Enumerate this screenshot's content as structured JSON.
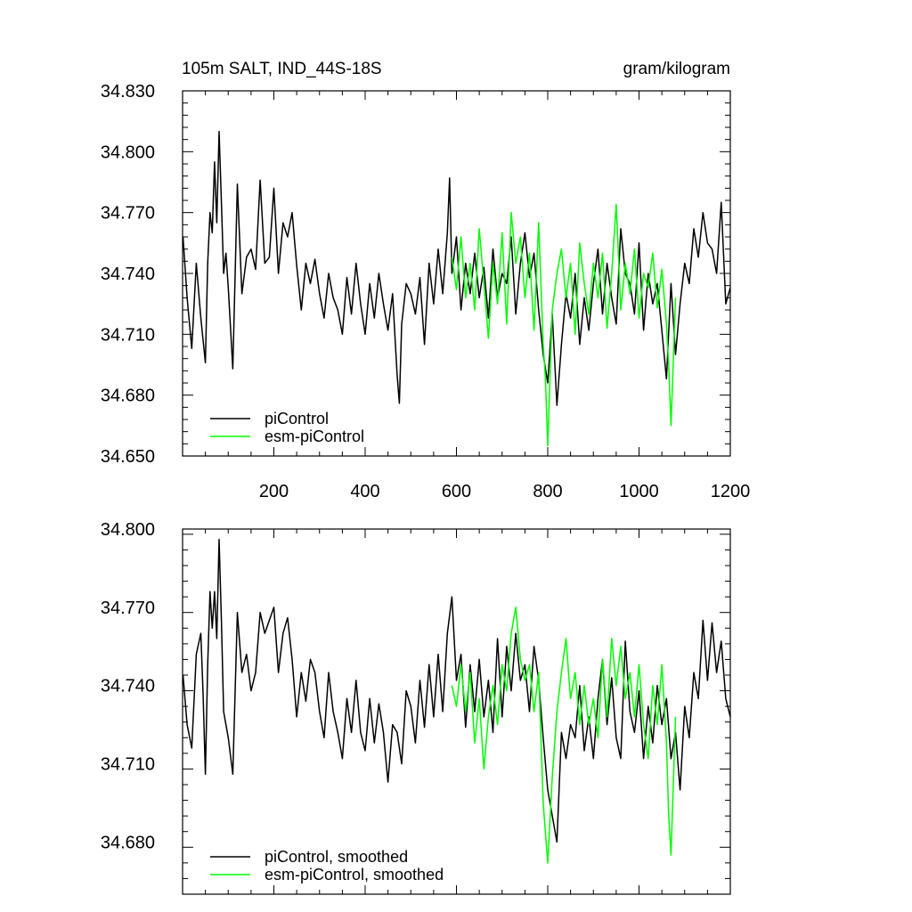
{
  "chart_data": [
    {
      "type": "line",
      "title_left": "105m SALT, IND_44S-18S",
      "title_right": "gram/kilogram",
      "xlim": [
        0,
        1200
      ],
      "ylim": [
        34.65,
        34.83
      ],
      "x_ticks": [
        200,
        400,
        600,
        800,
        1000,
        1200
      ],
      "x_tick_labels": [
        "200",
        "400",
        "600",
        "800",
        "1000",
        "1200"
      ],
      "y_ticks": [
        34.65,
        34.68,
        34.71,
        34.74,
        34.77,
        34.8,
        34.83
      ],
      "y_tick_labels": [
        "34.650",
        "34.680",
        "34.710",
        "34.740",
        "34.770",
        "34.800",
        "34.830"
      ],
      "legend_position": "bottom-left",
      "series": [
        {
          "name": "piControl",
          "color": "#000000",
          "x": [
            1,
            10,
            20,
            30,
            40,
            50,
            55,
            60,
            65,
            70,
            75,
            80,
            85,
            90,
            95,
            100,
            110,
            120,
            130,
            140,
            150,
            160,
            170,
            180,
            190,
            200,
            210,
            220,
            230,
            240,
            250,
            260,
            270,
            280,
            290,
            300,
            310,
            320,
            330,
            340,
            350,
            360,
            370,
            380,
            390,
            400,
            410,
            420,
            430,
            440,
            450,
            460,
            470,
            475,
            480,
            490,
            500,
            510,
            520,
            530,
            540,
            550,
            560,
            570,
            580,
            585,
            590,
            600,
            610,
            620,
            630,
            640,
            650,
            660,
            670,
            680,
            690,
            700,
            710,
            720,
            730,
            740,
            750,
            760,
            770,
            780,
            790,
            800,
            810,
            820,
            830,
            840,
            850,
            860,
            870,
            880,
            890,
            900,
            910,
            920,
            930,
            940,
            950,
            960,
            970,
            980,
            990,
            1000,
            1010,
            1020,
            1030,
            1040,
            1050,
            1060,
            1070,
            1080,
            1090,
            1100,
            1110,
            1120,
            1130,
            1140,
            1150,
            1160,
            1170,
            1180,
            1190,
            1200
          ],
          "values": [
            34.758,
            34.728,
            34.703,
            34.745,
            34.718,
            34.696,
            34.745,
            34.77,
            34.76,
            34.795,
            34.765,
            34.81,
            34.775,
            34.74,
            34.75,
            34.733,
            34.693,
            34.784,
            34.73,
            34.748,
            34.752,
            34.742,
            34.786,
            34.745,
            34.748,
            34.782,
            34.74,
            34.765,
            34.758,
            34.77,
            34.744,
            34.722,
            34.745,
            34.735,
            34.747,
            34.73,
            34.718,
            34.74,
            34.728,
            34.722,
            34.71,
            34.738,
            34.72,
            34.745,
            34.725,
            34.71,
            34.735,
            34.718,
            34.74,
            34.725,
            34.712,
            34.73,
            34.69,
            34.676,
            34.715,
            34.735,
            34.73,
            34.72,
            34.738,
            34.705,
            34.745,
            34.725,
            34.752,
            34.73,
            34.76,
            34.787,
            34.74,
            34.758,
            34.722,
            34.745,
            34.73,
            34.75,
            34.728,
            34.743,
            34.718,
            34.752,
            34.728,
            34.74,
            34.735,
            34.758,
            34.72,
            34.745,
            34.76,
            34.738,
            34.75,
            34.722,
            34.7,
            34.686,
            34.72,
            34.675,
            34.705,
            34.73,
            34.718,
            34.74,
            34.705,
            34.728,
            34.712,
            34.735,
            34.752,
            34.72,
            34.745,
            34.728,
            34.715,
            34.762,
            34.74,
            34.735,
            34.72,
            34.755,
            34.712,
            34.74,
            34.725,
            34.735,
            34.712,
            34.688,
            34.735,
            34.7,
            34.725,
            34.745,
            34.735,
            34.762,
            34.748,
            34.77,
            34.755,
            34.752,
            34.74,
            34.775,
            34.725,
            34.733
          ]
        },
        {
          "name": "esm-piControl",
          "color": "#00ff00",
          "x": [
            590,
            600,
            610,
            620,
            630,
            640,
            650,
            660,
            670,
            680,
            690,
            700,
            710,
            720,
            730,
            740,
            750,
            760,
            770,
            780,
            790,
            795,
            800,
            810,
            820,
            830,
            840,
            850,
            860,
            870,
            880,
            890,
            900,
            910,
            920,
            930,
            940,
            950,
            960,
            970,
            980,
            990,
            1000,
            1010,
            1020,
            1030,
            1040,
            1050,
            1060,
            1065,
            1070,
            1080
          ],
          "values": [
            34.748,
            34.732,
            34.758,
            34.728,
            34.745,
            34.722,
            34.762,
            34.735,
            34.708,
            34.745,
            34.725,
            34.76,
            34.715,
            34.77,
            34.745,
            34.758,
            34.728,
            34.75,
            34.712,
            34.765,
            34.705,
            34.688,
            34.655,
            34.722,
            34.74,
            34.752,
            34.728,
            34.745,
            34.71,
            34.755,
            34.735,
            34.72,
            34.745,
            34.728,
            34.75,
            34.713,
            34.74,
            34.774,
            34.722,
            34.745,
            34.73,
            34.752,
            34.718,
            34.74,
            34.733,
            34.75,
            34.723,
            34.742,
            34.715,
            34.695,
            34.665,
            34.728
          ]
        }
      ]
    },
    {
      "type": "line",
      "xlim": [
        0,
        1200
      ],
      "ylim": [
        34.66,
        34.8
      ],
      "y_ticks": [
        34.68,
        34.71,
        34.74,
        34.77,
        34.8
      ],
      "y_tick_labels": [
        "34.680",
        "34.710",
        "34.740",
        "34.770",
        "34.800"
      ],
      "legend_position": "bottom-left",
      "series": [
        {
          "name": "piControl, smoothed",
          "color": "#000000",
          "x": [
            1,
            10,
            20,
            30,
            40,
            45,
            50,
            55,
            60,
            65,
            70,
            75,
            80,
            85,
            90,
            100,
            110,
            120,
            130,
            140,
            150,
            160,
            170,
            180,
            190,
            200,
            210,
            220,
            230,
            240,
            250,
            260,
            270,
            280,
            290,
            300,
            310,
            320,
            330,
            340,
            350,
            360,
            370,
            380,
            390,
            400,
            410,
            420,
            430,
            440,
            450,
            460,
            470,
            480,
            490,
            500,
            510,
            520,
            530,
            540,
            550,
            560,
            570,
            580,
            590,
            600,
            610,
            620,
            630,
            640,
            650,
            660,
            670,
            680,
            690,
            700,
            710,
            720,
            730,
            740,
            750,
            760,
            770,
            780,
            790,
            800,
            810,
            820,
            830,
            840,
            850,
            860,
            870,
            880,
            890,
            900,
            910,
            920,
            930,
            940,
            950,
            960,
            970,
            980,
            990,
            1000,
            1010,
            1020,
            1030,
            1040,
            1050,
            1060,
            1070,
            1080,
            1090,
            1100,
            1110,
            1120,
            1130,
            1140,
            1150,
            1160,
            1170,
            1180,
            1190,
            1200
          ],
          "values": [
            34.744,
            34.725,
            34.716,
            34.752,
            34.76,
            34.736,
            34.706,
            34.748,
            34.776,
            34.762,
            34.776,
            34.758,
            34.796,
            34.765,
            34.73,
            34.72,
            34.706,
            34.768,
            34.745,
            34.752,
            34.738,
            34.745,
            34.768,
            34.76,
            34.765,
            34.77,
            34.745,
            34.76,
            34.766,
            34.75,
            34.728,
            34.745,
            34.734,
            34.75,
            34.745,
            34.73,
            34.72,
            34.745,
            34.73,
            34.722,
            34.712,
            34.735,
            34.722,
            34.742,
            34.722,
            34.715,
            34.735,
            34.718,
            34.733,
            34.722,
            34.703,
            34.725,
            34.722,
            34.71,
            34.738,
            34.732,
            34.718,
            34.742,
            34.724,
            34.748,
            34.728,
            34.752,
            34.73,
            34.76,
            34.774,
            34.742,
            34.752,
            34.724,
            34.748,
            34.73,
            34.75,
            34.728,
            34.742,
            34.722,
            34.758,
            34.728,
            34.755,
            34.738,
            34.76,
            34.742,
            34.748,
            34.73,
            34.755,
            34.742,
            34.72,
            34.7,
            34.69,
            34.68,
            34.722,
            34.712,
            34.725,
            34.72,
            34.74,
            34.715,
            34.728,
            34.712,
            34.735,
            34.75,
            34.725,
            34.743,
            34.72,
            34.712,
            34.757,
            34.73,
            34.722,
            34.738,
            34.712,
            34.732,
            34.718,
            34.74,
            34.725,
            34.735,
            34.712,
            34.722,
            34.7,
            34.732,
            34.72,
            34.745,
            34.735,
            34.765,
            34.742,
            34.764,
            34.745,
            34.757,
            34.735,
            34.728
          ]
        },
        {
          "name": "esm-piControl, smoothed",
          "color": "#00ff00",
          "x": [
            590,
            600,
            610,
            620,
            630,
            640,
            650,
            660,
            670,
            680,
            690,
            700,
            710,
            720,
            730,
            740,
            750,
            760,
            770,
            780,
            790,
            800,
            810,
            820,
            830,
            840,
            850,
            860,
            870,
            880,
            890,
            900,
            910,
            920,
            930,
            940,
            950,
            960,
            970,
            980,
            990,
            1000,
            1010,
            1020,
            1030,
            1040,
            1050,
            1060,
            1065,
            1070,
            1080
          ],
          "values": [
            34.74,
            34.732,
            34.748,
            34.73,
            34.745,
            34.718,
            34.735,
            34.708,
            34.728,
            34.74,
            34.725,
            34.748,
            34.738,
            34.76,
            34.77,
            34.75,
            34.742,
            34.748,
            34.73,
            34.745,
            34.695,
            34.672,
            34.705,
            34.73,
            34.745,
            34.758,
            34.735,
            34.745,
            34.725,
            34.74,
            34.725,
            34.735,
            34.72,
            34.75,
            34.728,
            34.758,
            34.74,
            34.755,
            34.735,
            34.745,
            34.728,
            34.748,
            34.725,
            34.712,
            34.74,
            34.725,
            34.748,
            34.718,
            34.69,
            34.675,
            34.728
          ]
        }
      ]
    }
  ]
}
